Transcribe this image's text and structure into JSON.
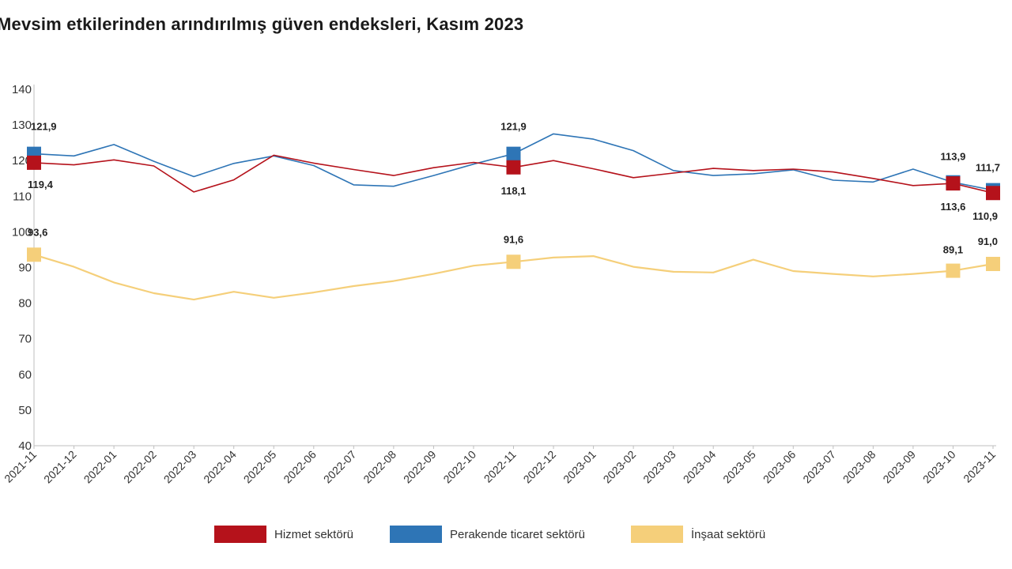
{
  "chart_data": {
    "type": "line",
    "title": "Mevsim etkilerinden arındırılmış güven endeksleri, Kasım 2023",
    "xlabel": "",
    "ylabel": "",
    "ylim": [
      40,
      140
    ],
    "yticks": [
      40,
      50,
      60,
      70,
      80,
      90,
      100,
      110,
      120,
      130,
      140
    ],
    "grid": false,
    "legend_position": "bottom",
    "categories": [
      "2021-11",
      "2021-12",
      "2022-01",
      "2022-02",
      "2022-03",
      "2022-04",
      "2022-05",
      "2022-06",
      "2022-07",
      "2022-08",
      "2022-09",
      "2022-10",
      "2022-11",
      "2022-12",
      "2023-01",
      "2023-02",
      "2023-03",
      "2023-04",
      "2023-05",
      "2023-06",
      "2023-07",
      "2023-08",
      "2023-09",
      "2023-10",
      "2023-11"
    ],
    "series": [
      {
        "name": "Hizmet sektörü",
        "color": "#b5121b",
        "values": [
          119.4,
          118.8,
          120.2,
          118.5,
          111.2,
          114.6,
          121.5,
          119.3,
          117.5,
          115.8,
          118.0,
          119.5,
          118.1,
          120.0,
          117.7,
          115.2,
          116.5,
          117.8,
          117.2,
          117.6,
          116.8,
          115.0,
          113.0,
          113.6,
          110.9
        ],
        "labels": [
          {
            "index": 0,
            "text": "119,4"
          },
          {
            "index": 12,
            "text": "118,1"
          },
          {
            "index": 23,
            "text": "113,6"
          },
          {
            "index": 24,
            "text": "110,9"
          }
        ]
      },
      {
        "name": "Perakende ticaret sektörü",
        "color": "#2e75b6",
        "values": [
          121.9,
          121.3,
          124.5,
          119.8,
          115.5,
          119.2,
          121.3,
          118.6,
          113.2,
          112.8,
          115.8,
          119.0,
          121.9,
          127.5,
          126.0,
          122.8,
          117.2,
          115.8,
          116.3,
          117.4,
          114.5,
          114.0,
          117.6,
          113.9,
          111.7
        ],
        "labels": [
          {
            "index": 0,
            "text": "121,9"
          },
          {
            "index": 12,
            "text": "121,9"
          },
          {
            "index": 23,
            "text": "113,9"
          },
          {
            "index": 24,
            "text": "111,7"
          }
        ]
      },
      {
        "name": "İnşaat sektörü",
        "color": "#f5cf7a",
        "values": [
          93.6,
          90.2,
          85.8,
          82.8,
          81.0,
          83.2,
          81.5,
          83.0,
          84.8,
          86.2,
          88.2,
          90.5,
          91.6,
          92.8,
          93.2,
          90.2,
          88.8,
          88.6,
          92.2,
          89.0,
          88.2,
          87.5,
          88.2,
          89.1,
          91.0
        ],
        "labels": [
          {
            "index": 0,
            "text": "93,6"
          },
          {
            "index": 12,
            "text": "91,6"
          },
          {
            "index": 23,
            "text": "89,1"
          },
          {
            "index": 24,
            "text": "91,0"
          }
        ]
      }
    ]
  }
}
